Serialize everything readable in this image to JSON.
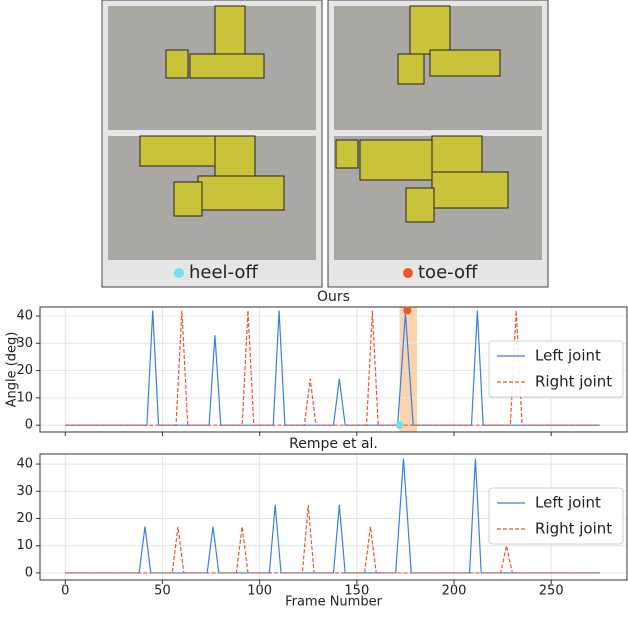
{
  "panels": {
    "labels": [
      "heel-off",
      "toe-off"
    ],
    "colors": [
      "#6fe0ee",
      "#e8582a"
    ]
  },
  "chart_data": [
    {
      "type": "line",
      "title": "Ours",
      "ylabel": "Angle (deg)",
      "xlim": [
        -13,
        289
      ],
      "xticks": [
        0,
        50,
        100,
        150,
        200,
        250
      ],
      "xtick_labels": false,
      "ylim": [
        -2.5,
        43.3
      ],
      "yticks": [
        0,
        10,
        20,
        30,
        40
      ],
      "grid": true,
      "legend": "right",
      "highlight": [
        172,
        181
      ],
      "highlight_color": "#f7c99a",
      "markers": [
        {
          "x": 172,
          "y": 0,
          "color": "#6fe0ee"
        },
        {
          "x": 176,
          "y": 42,
          "color": "#e8582a"
        }
      ],
      "series": [
        {
          "name": "Left joint",
          "color": "#3b7fe0",
          "dash": false,
          "x": [
            0,
            42,
            45,
            48,
            74,
            77,
            80,
            107,
            110,
            113,
            138,
            141,
            144,
            171,
            175,
            179,
            209,
            212,
            215,
            275
          ],
          "values": [
            0,
            0,
            42,
            0,
            0,
            33,
            0,
            0,
            42,
            0,
            0,
            17,
            0,
            0,
            41,
            0,
            0,
            42,
            0,
            0
          ]
        },
        {
          "name": "Right joint",
          "color": "#e8582a",
          "dash": true,
          "x": [
            0,
            57,
            60,
            63,
            91,
            94,
            97,
            123,
            126,
            129,
            155,
            158,
            161,
            229,
            232,
            235,
            275
          ],
          "values": [
            0,
            0,
            42,
            0,
            0,
            42,
            0,
            0,
            17,
            0,
            0,
            42,
            0,
            0,
            42,
            0,
            0
          ]
        }
      ]
    },
    {
      "type": "line",
      "title": "Rempe et al.",
      "xlabel": "Frame Number",
      "xlim": [
        -13,
        289
      ],
      "xticks": [
        0,
        50,
        100,
        150,
        200,
        250
      ],
      "xtick_labels": true,
      "ylim": [
        -2.6,
        43.7
      ],
      "yticks": [
        0,
        10,
        20,
        30,
        40
      ],
      "grid": true,
      "legend": "right",
      "series": [
        {
          "name": "Left joint",
          "color": "#3b7fe0",
          "dash": false,
          "x": [
            0,
            38,
            41,
            44,
            73,
            76,
            79,
            105,
            108,
            111,
            138,
            141,
            144,
            170,
            174,
            178,
            208,
            211,
            214,
            275
          ],
          "values": [
            0,
            0,
            17,
            0,
            0,
            17,
            0,
            0,
            25,
            0,
            0,
            25,
            0,
            0,
            42,
            0,
            0,
            42,
            0,
            0
          ]
        },
        {
          "name": "Right joint",
          "color": "#e8582a",
          "dash": true,
          "x": [
            0,
            55,
            58,
            61,
            88,
            91,
            94,
            122,
            125,
            128,
            154,
            157,
            160,
            224,
            227,
            230,
            275
          ],
          "values": [
            0,
            0,
            17,
            0,
            0,
            17,
            0,
            0,
            25,
            0,
            0,
            17,
            0,
            0,
            10,
            0,
            0
          ]
        }
      ]
    }
  ]
}
